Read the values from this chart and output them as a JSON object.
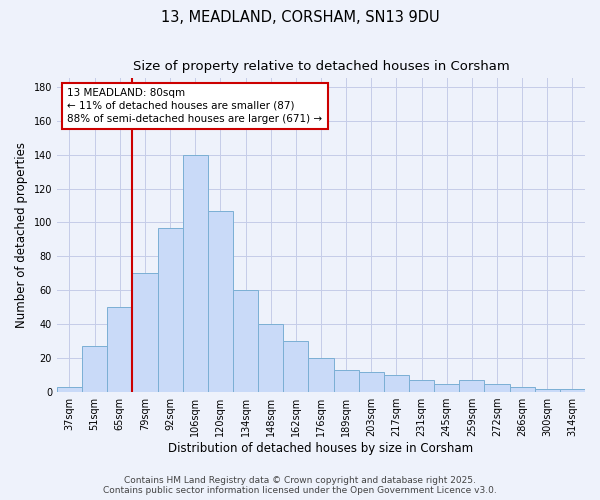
{
  "title": "13, MEADLAND, CORSHAM, SN13 9DU",
  "subtitle": "Size of property relative to detached houses in Corsham",
  "xlabel": "Distribution of detached houses by size in Corsham",
  "ylabel": "Number of detached properties",
  "categories": [
    "37sqm",
    "51sqm",
    "65sqm",
    "79sqm",
    "92sqm",
    "106sqm",
    "120sqm",
    "134sqm",
    "148sqm",
    "162sqm",
    "176sqm",
    "189sqm",
    "203sqm",
    "217sqm",
    "231sqm",
    "245sqm",
    "259sqm",
    "272sqm",
    "286sqm",
    "300sqm",
    "314sqm"
  ],
  "values": [
    3,
    27,
    50,
    70,
    97,
    140,
    107,
    60,
    40,
    30,
    20,
    13,
    12,
    10,
    7,
    5,
    7,
    5,
    3,
    2,
    2
  ],
  "bar_color": "#c9daf8",
  "bar_edge_color": "#7bafd4",
  "vline_index": 2.5,
  "vline_color": "#cc0000",
  "annotation_text": "13 MEADLAND: 80sqm\n← 11% of detached houses are smaller (87)\n88% of semi-detached houses are larger (671) →",
  "annotation_box_color": "#cc0000",
  "ylim": [
    0,
    185
  ],
  "yticks": [
    0,
    20,
    40,
    60,
    80,
    100,
    120,
    140,
    160,
    180
  ],
  "footer": "Contains HM Land Registry data © Crown copyright and database right 2025.\nContains public sector information licensed under the Open Government Licence v3.0.",
  "background_color": "#eef2fb",
  "grid_color": "#c5cce8",
  "title_fontsize": 10.5,
  "subtitle_fontsize": 9.5,
  "axis_label_fontsize": 8.5,
  "tick_fontsize": 7,
  "footer_fontsize": 6.5,
  "annotation_fontsize": 7.5
}
